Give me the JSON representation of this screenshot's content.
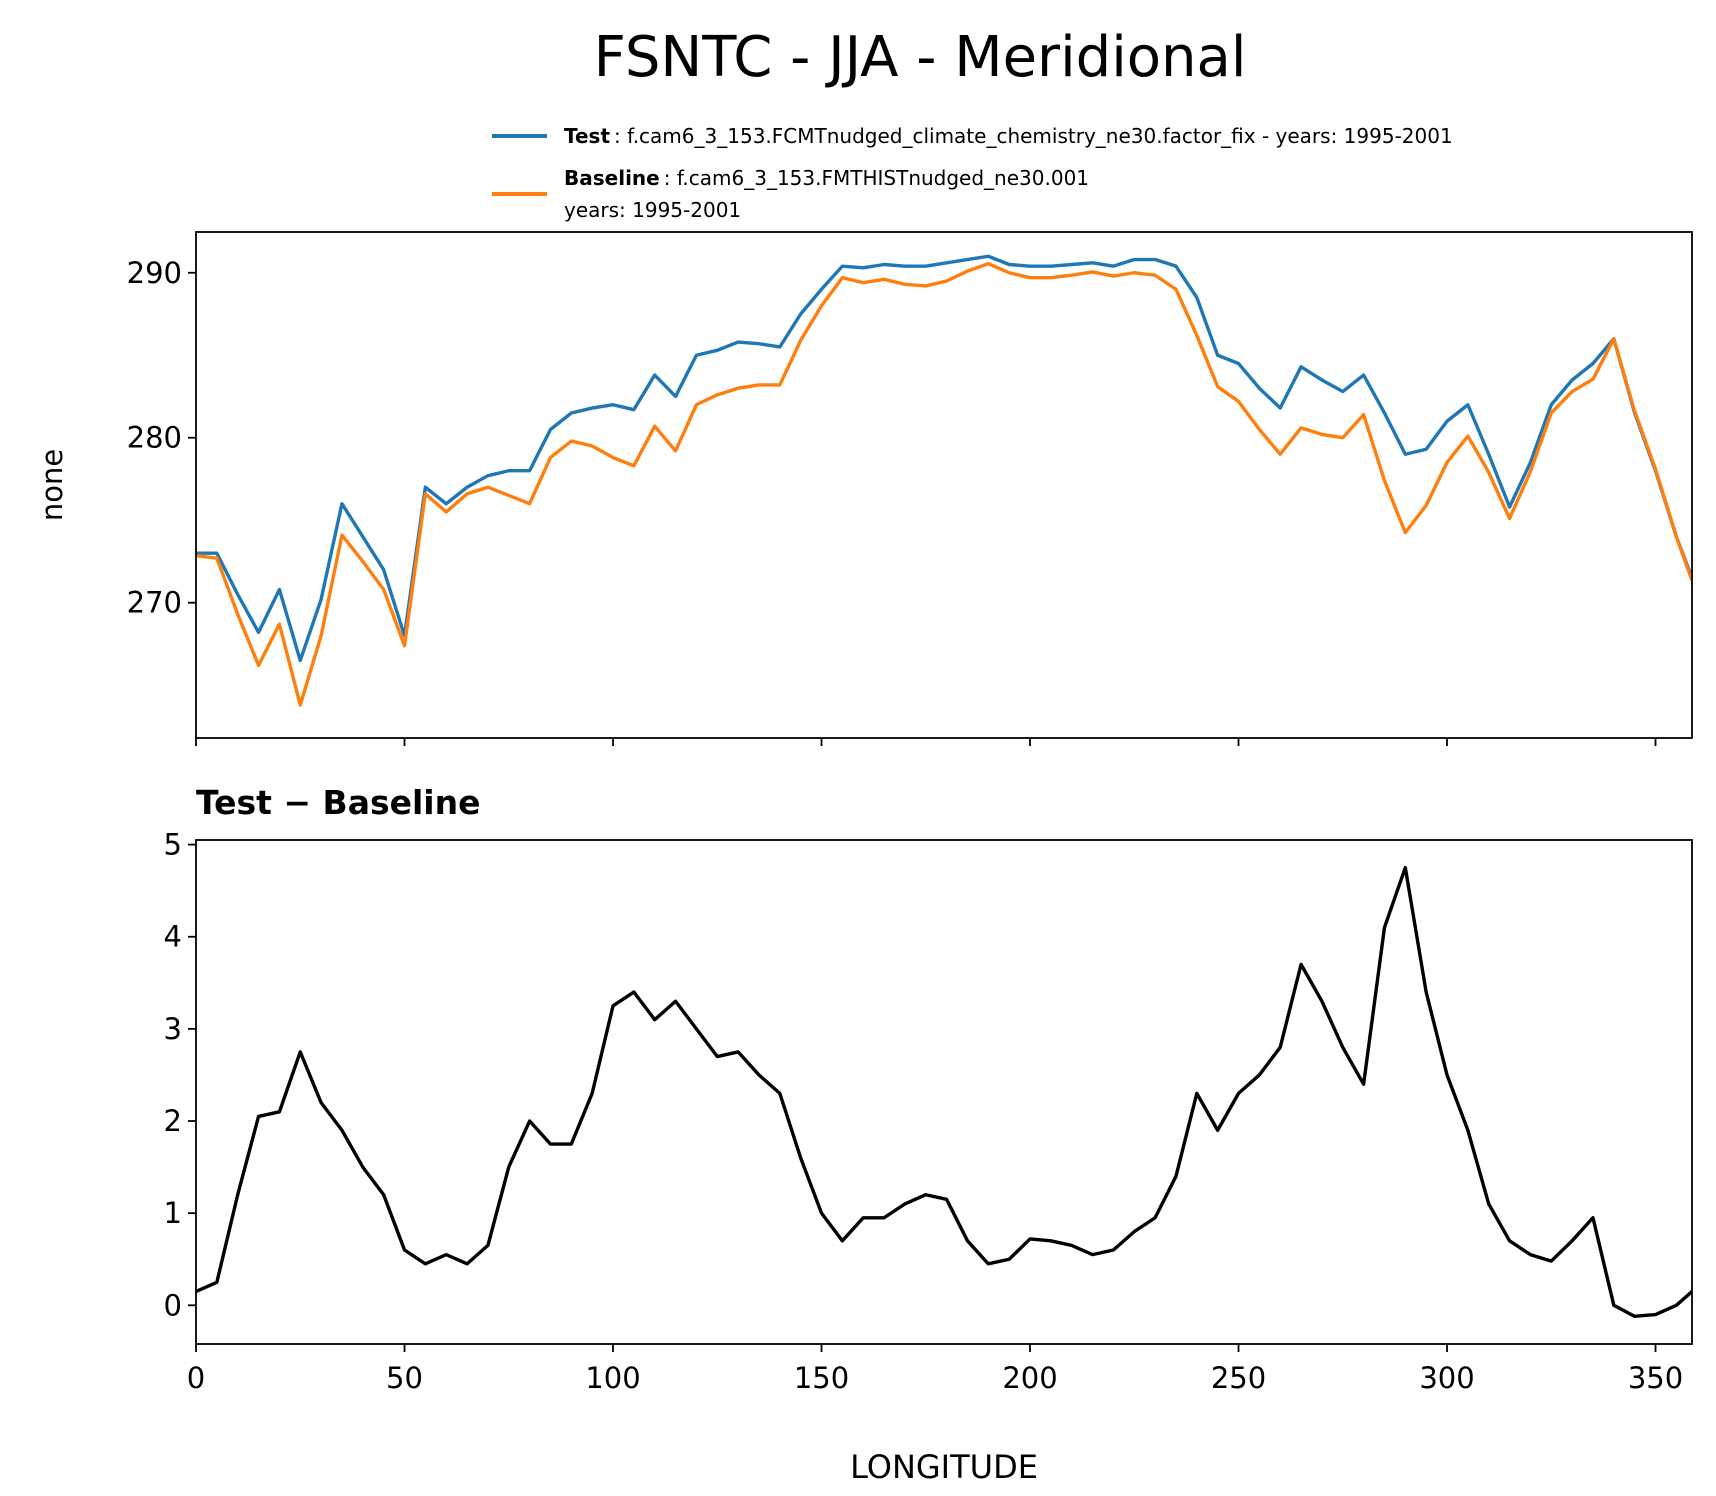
{
  "title": "FSNTC - JJA - Meridional",
  "chart_data": [
    {
      "type": "line",
      "ylabel": "none",
      "x": [
        0,
        5,
        10,
        15,
        20,
        25,
        30,
        35,
        40,
        45,
        50,
        55,
        60,
        65,
        70,
        75,
        80,
        85,
        90,
        95,
        100,
        105,
        110,
        115,
        120,
        125,
        130,
        135,
        140,
        145,
        150,
        155,
        160,
        165,
        170,
        175,
        180,
        185,
        190,
        195,
        200,
        205,
        210,
        215,
        220,
        225,
        230,
        235,
        240,
        245,
        250,
        255,
        260,
        265,
        270,
        275,
        280,
        285,
        290,
        295,
        300,
        305,
        310,
        315,
        320,
        325,
        330,
        335,
        340,
        345,
        350,
        355,
        358.75
      ],
      "series": [
        {
          "name": "Test",
          "legend_text": [
            ": f.cam6_3_153.FCMTnudged_climate_chemistry_ne30.factor_fix - years: 1995-2001"
          ],
          "color": "#1f77b4",
          "values": [
            273,
            273,
            270.5,
            268.2,
            270.8,
            266.5,
            270.2,
            276,
            274,
            272,
            268,
            277,
            276,
            277,
            277.7,
            278,
            278,
            280.5,
            281.5,
            281.8,
            282,
            281.7,
            283.8,
            282.5,
            285,
            285.3,
            285.8,
            285.7,
            285.5,
            287.5,
            289,
            290.4,
            290.3,
            290.5,
            290.4,
            290.4,
            290.6,
            290.8,
            291,
            290.5,
            290.4,
            290.4,
            290.5,
            290.6,
            290.4,
            290.8,
            290.8,
            290.4,
            288.5,
            285,
            284.5,
            283,
            281.8,
            284.3,
            283.5,
            282.8,
            283.8,
            281.5,
            279,
            279.3,
            281,
            282,
            279,
            275.8,
            278.5,
            282,
            283.5,
            284.5,
            286,
            281.5,
            278,
            274,
            271.5
          ]
        },
        {
          "name": "Baseline",
          "legend_text": [
            ": f.cam6_3_153.FMTHISTnudged_ne30.001",
            "years: 1995-2001"
          ],
          "color": "#ff7f0e",
          "values": [
            272.85,
            272.7,
            269.3,
            266.2,
            268.7,
            263.8,
            268,
            274.1,
            272.5,
            270.8,
            267.4,
            276.6,
            275.5,
            276.6,
            277,
            276.5,
            276,
            278.8,
            279.8,
            279.5,
            278.8,
            278.3,
            280.7,
            279.2,
            282,
            282.6,
            283,
            283.2,
            283.2,
            285.9,
            288,
            289.7,
            289.4,
            289.6,
            289.3,
            289.2,
            289.5,
            290.1,
            290.55,
            290,
            289.7,
            289.7,
            289.85,
            290.05,
            289.8,
            290,
            289.85,
            289,
            286.2,
            283.1,
            282.2,
            280.5,
            279,
            280.6,
            280.2,
            280,
            281.4,
            277.4,
            274.25,
            275.9,
            278.5,
            280.1,
            277.9,
            275.1,
            277.95,
            281.5,
            282.8,
            283.55,
            286,
            281.6,
            278.1,
            274,
            271.35
          ]
        }
      ],
      "xlim": [
        0,
        358.75
      ],
      "xticks": [
        0,
        50,
        100,
        150,
        200,
        250,
        300,
        350
      ],
      "xticklabels_visible": false,
      "ylim": [
        261.8,
        292.47
      ],
      "yticks": [
        270,
        280,
        290
      ]
    },
    {
      "type": "line",
      "title": "Test − Baseline",
      "xlabel": "LONGITUDE",
      "x": [
        0,
        5,
        10,
        15,
        20,
        25,
        30,
        35,
        40,
        45,
        50,
        55,
        60,
        65,
        70,
        75,
        80,
        85,
        90,
        95,
        100,
        105,
        110,
        115,
        120,
        125,
        130,
        135,
        140,
        145,
        150,
        155,
        160,
        165,
        170,
        175,
        180,
        185,
        190,
        195,
        200,
        205,
        210,
        215,
        220,
        225,
        230,
        235,
        240,
        245,
        250,
        255,
        260,
        265,
        270,
        275,
        280,
        285,
        290,
        295,
        300,
        305,
        310,
        315,
        320,
        325,
        330,
        335,
        340,
        345,
        350,
        355,
        358.75
      ],
      "series": [
        {
          "color": "#000000",
          "values": [
            0.15,
            0.25,
            1.2,
            2.05,
            2.1,
            2.75,
            2.2,
            1.9,
            1.5,
            1.2,
            0.6,
            0.45,
            0.55,
            0.45,
            0.65,
            1.5,
            2,
            1.75,
            1.75,
            2.3,
            3.25,
            3.4,
            3.1,
            3.3,
            3,
            2.7,
            2.75,
            2.5,
            2.3,
            1.6,
            1,
            0.7,
            0.95,
            0.95,
            1.1,
            1.2,
            1.15,
            0.7,
            0.45,
            0.5,
            0.72,
            0.7,
            0.65,
            0.55,
            0.6,
            0.8,
            0.95,
            1.4,
            2.3,
            1.9,
            2.3,
            2.5,
            2.8,
            3.7,
            3.3,
            2.8,
            2.4,
            4.1,
            4.75,
            3.4,
            2.5,
            1.9,
            1.1,
            0.7,
            0.55,
            0.48,
            0.7,
            0.95,
            0,
            -0.12,
            -0.1,
            0,
            0.15
          ]
        }
      ],
      "xlim": [
        0,
        358.75
      ],
      "xticks": [
        0,
        50,
        100,
        150,
        200,
        250,
        300,
        350
      ],
      "xticklabels_visible": true,
      "ylim": [
        -0.42,
        5.05
      ],
      "yticks": [
        0,
        1,
        2,
        3,
        4,
        5
      ]
    }
  ]
}
